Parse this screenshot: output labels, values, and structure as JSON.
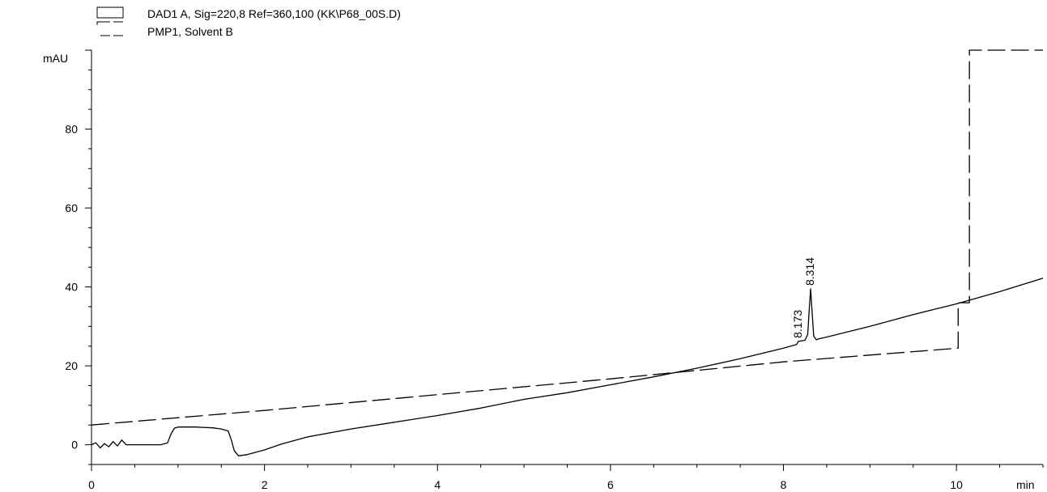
{
  "chart_data": {
    "type": "line",
    "legend": [
      {
        "label": "DAD1 A, Sig=220,8 Ref=360,100 (KK\\P68_00S.D)",
        "style": "solid"
      },
      {
        "label": "PMP1, Solvent B",
        "style": "dashed"
      }
    ],
    "legend_position": "top-left",
    "ylabel": "mAU",
    "xlabel": "min",
    "xlim": [
      0,
      11
    ],
    "ylim": [
      -5,
      100
    ],
    "x_ticks": [
      0,
      2,
      4,
      6,
      8,
      10
    ],
    "x_tick_labels": [
      "0",
      "2",
      "4",
      "6",
      "8",
      "10"
    ],
    "y_ticks": [
      0,
      20,
      40,
      60,
      80
    ],
    "y_tick_labels": [
      "0",
      "20",
      "40",
      "60",
      "80"
    ],
    "grid": false,
    "series": [
      {
        "name": "DAD1 A, Sig=220,8 Ref=360,100 (KK\\P68_00S.D)",
        "style": "solid",
        "x": [
          0,
          0.05,
          0.1,
          0.15,
          0.2,
          0.25,
          0.3,
          0.35,
          0.4,
          0.5,
          0.6,
          0.7,
          0.8,
          0.88,
          0.92,
          0.96,
          1.0,
          1.2,
          1.4,
          1.5,
          1.58,
          1.62,
          1.65,
          1.7,
          1.8,
          2.0,
          2.2,
          2.5,
          3.0,
          3.5,
          4.0,
          4.5,
          5.0,
          5.5,
          6.0,
          6.5,
          7.0,
          7.5,
          8.0,
          8.15,
          8.173,
          8.2,
          8.25,
          8.28,
          8.3,
          8.314,
          8.33,
          8.35,
          8.38,
          8.4,
          8.5,
          9.0,
          9.5,
          10.0,
          10.5,
          11.0
        ],
        "y": [
          0,
          0.5,
          -0.8,
          0.3,
          -0.5,
          0.8,
          -0.3,
          1.2,
          0,
          0,
          0,
          0,
          0,
          0.5,
          2.8,
          4.2,
          4.5,
          4.5,
          4.3,
          4.0,
          3.5,
          1.0,
          -1.5,
          -2.8,
          -2.5,
          -1.3,
          0.2,
          2.0,
          4.0,
          5.7,
          7.4,
          9.3,
          11.5,
          13.2,
          15.2,
          17.2,
          19.4,
          21.8,
          24.5,
          25.4,
          26.2,
          26.3,
          26.5,
          28.0,
          35.0,
          39.5,
          34.0,
          27.5,
          26.6,
          26.8,
          27.3,
          30.0,
          33.0,
          35.7,
          38.8,
          42.2
        ]
      },
      {
        "name": "PMP1, Solvent B",
        "style": "dashed",
        "x": [
          0,
          2,
          4,
          6,
          8,
          10.02,
          10.02,
          10.15,
          10.15,
          11
        ],
        "y": [
          5,
          8.7,
          12.7,
          16.7,
          21.0,
          24.5,
          36,
          36,
          100,
          100
        ]
      }
    ],
    "annotations": [
      {
        "text": "8.173",
        "x": 8.173,
        "y": 26.2
      },
      {
        "text": "8.314",
        "x": 8.314,
        "y": 39.5
      }
    ]
  }
}
